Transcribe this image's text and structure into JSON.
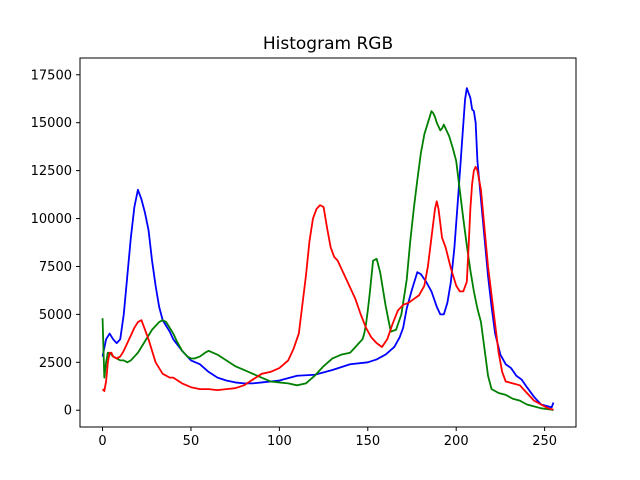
{
  "chart_data": {
    "type": "line",
    "title": "Histogram RGB",
    "xlabel": "",
    "ylabel": "",
    "xlim": [
      -12.75,
      267.75
    ],
    "ylim": [
      -875,
      18375
    ],
    "xticks": [
      0,
      50,
      100,
      150,
      200,
      250
    ],
    "yticks": [
      0,
      2500,
      5000,
      7500,
      10000,
      12500,
      15000,
      17500
    ],
    "xtick_labels": [
      "0",
      "50",
      "100",
      "150",
      "200",
      "250"
    ],
    "ytick_labels": [
      "0",
      "2500",
      "5000",
      "7500",
      "10000",
      "12500",
      "15000",
      "17500"
    ],
    "grid": false,
    "legend": "none",
    "series": [
      {
        "color": "#0000ff",
        "x": [
          0,
          2,
          4,
          6,
          8,
          10,
          12,
          14,
          16,
          18,
          20,
          22,
          24,
          26,
          28,
          30,
          32,
          34,
          36,
          38,
          40,
          45,
          50,
          55,
          60,
          65,
          70,
          75,
          80,
          85,
          90,
          95,
          100,
          110,
          120,
          130,
          140,
          150,
          155,
          160,
          165,
          168,
          170,
          172,
          175,
          178,
          180,
          183,
          186,
          189,
          191,
          193,
          195,
          197,
          199,
          201,
          203,
          205,
          206,
          208,
          209,
          210,
          211,
          212,
          214,
          216,
          218,
          220,
          222,
          225,
          228,
          231,
          234,
          237,
          240,
          244,
          248,
          252,
          254,
          255
        ],
        "y": [
          2800,
          3700,
          4000,
          3700,
          3500,
          3700,
          5000,
          7000,
          9000,
          10600,
          11500,
          11000,
          10300,
          9400,
          7800,
          6500,
          5400,
          4700,
          4400,
          4100,
          3700,
          3100,
          2600,
          2400,
          2000,
          1700,
          1550,
          1450,
          1400,
          1400,
          1450,
          1500,
          1550,
          1800,
          1850,
          2100,
          2400,
          2500,
          2650,
          2900,
          3300,
          3800,
          4300,
          5300,
          6300,
          7200,
          7100,
          6700,
          6200,
          5400,
          5000,
          5000,
          5600,
          6700,
          8500,
          11000,
          13600,
          16200,
          16800,
          16300,
          15700,
          15600,
          15000,
          13000,
          11000,
          9000,
          7000,
          5400,
          4000,
          2900,
          2400,
          2200,
          1800,
          1600,
          1200,
          700,
          300,
          200,
          150,
          400
        ]
      },
      {
        "color": "#008000",
        "x": [
          0,
          1,
          2,
          3,
          4,
          5,
          6,
          8,
          10,
          12,
          14,
          16,
          18,
          20,
          22,
          24,
          26,
          28,
          30,
          32,
          34,
          36,
          38,
          40,
          42,
          45,
          48,
          50,
          52,
          55,
          58,
          60,
          65,
          70,
          75,
          80,
          85,
          90,
          95,
          100,
          105,
          110,
          115,
          120,
          125,
          130,
          135,
          140,
          143,
          145,
          147,
          148,
          149,
          150,
          151,
          152,
          153,
          155,
          157,
          160,
          163,
          166,
          169,
          172,
          174,
          176,
          178,
          180,
          182,
          184,
          185,
          186,
          187,
          188,
          189,
          190,
          191,
          192,
          193,
          194,
          196,
          198,
          200,
          202,
          204,
          206,
          208,
          210,
          212,
          214,
          216,
          218,
          220,
          224,
          228,
          232,
          236,
          240,
          244,
          248,
          252,
          254,
          255
        ],
        "y": [
          4800,
          1700,
          2500,
          3000,
          3000,
          2900,
          2800,
          2700,
          2600,
          2600,
          2500,
          2600,
          2800,
          3000,
          3300,
          3600,
          3900,
          4200,
          4400,
          4600,
          4700,
          4600,
          4300,
          4000,
          3600,
          3100,
          2800,
          2700,
          2700,
          2800,
          3000,
          3100,
          2900,
          2600,
          2300,
          2100,
          1900,
          1700,
          1500,
          1450,
          1400,
          1300,
          1400,
          1800,
          2300,
          2700,
          2900,
          3000,
          3300,
          3500,
          3700,
          4000,
          4500,
          5200,
          6000,
          6900,
          7800,
          7900,
          7200,
          5500,
          4100,
          4200,
          5000,
          6800,
          8800,
          10500,
          12000,
          13400,
          14400,
          15000,
          15300,
          15600,
          15500,
          15300,
          15000,
          14800,
          14600,
          14700,
          14900,
          14700,
          14300,
          13700,
          13000,
          11500,
          10000,
          8600,
          7300,
          6200,
          5300,
          4600,
          3200,
          1800,
          1100,
          900,
          800,
          600,
          500,
          300,
          200,
          100,
          50,
          30,
          0
        ]
      },
      {
        "color": "#ff0000",
        "x": [
          0,
          1,
          2,
          3,
          4,
          5,
          6,
          8,
          10,
          12,
          14,
          16,
          18,
          20,
          22,
          24,
          26,
          28,
          30,
          32,
          34,
          36,
          38,
          40,
          45,
          50,
          55,
          60,
          65,
          70,
          75,
          80,
          85,
          90,
          95,
          100,
          105,
          108,
          111,
          113,
          115,
          117,
          119,
          121,
          123,
          125,
          127,
          129,
          131,
          133,
          135,
          137,
          140,
          143,
          146,
          149,
          152,
          155,
          158,
          161,
          164,
          167,
          170,
          173,
          176,
          179,
          182,
          184,
          186,
          188,
          189,
          190,
          192,
          194,
          197,
          200,
          202,
          204,
          206,
          207,
          208,
          209,
          210,
          211,
          212,
          213,
          214,
          216,
          218,
          220,
          222,
          224,
          226,
          228,
          232,
          236,
          240,
          244,
          248,
          252,
          254,
          255
        ],
        "y": [
          1100,
          1000,
          1500,
          2500,
          3000,
          3000,
          2800,
          2700,
          2800,
          3100,
          3500,
          3900,
          4300,
          4600,
          4700,
          4200,
          3700,
          3100,
          2500,
          2200,
          1900,
          1800,
          1700,
          1700,
          1400,
          1200,
          1100,
          1100,
          1050,
          1100,
          1150,
          1300,
          1600,
          1900,
          2000,
          2200,
          2600,
          3200,
          4000,
          5500,
          7000,
          8800,
          10000,
          10500,
          10700,
          10600,
          9500,
          8500,
          8000,
          7800,
          7400,
          7000,
          6400,
          5800,
          5000,
          4300,
          3800,
          3500,
          3300,
          3700,
          4500,
          5200,
          5500,
          5600,
          5800,
          6000,
          6500,
          7500,
          9000,
          10500,
          10900,
          10500,
          9000,
          8500,
          7400,
          6500,
          6200,
          6200,
          6700,
          8500,
          10500,
          11800,
          12500,
          12700,
          12500,
          12000,
          11500,
          9500,
          7500,
          6000,
          4500,
          3000,
          2000,
          1500,
          1400,
          1300,
          900,
          500,
          300,
          100,
          50,
          30
        ]
      }
    ]
  }
}
